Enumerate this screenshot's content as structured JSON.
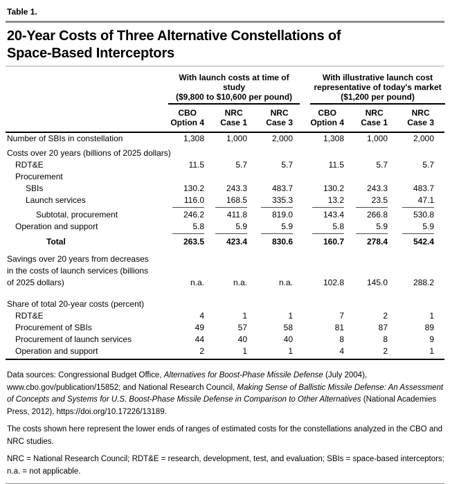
{
  "table_label": "Table 1.",
  "title_lines": [
    "20-Year Costs of Three Alternative Constellations of",
    "Space-Based Interceptors"
  ],
  "column_groups": [
    {
      "lines": [
        "With launch costs at time of study",
        "($9,800 to $10,600 per pound)"
      ]
    },
    {
      "lines": [
        "With illustrative launch cost",
        "representative of today's market",
        "($1,200 per pound)"
      ]
    }
  ],
  "columns": [
    {
      "lines": [
        "CBO",
        "Option 4"
      ]
    },
    {
      "lines": [
        "NRC",
        "Case 1"
      ]
    },
    {
      "lines": [
        "NRC",
        "Case 3"
      ]
    },
    {
      "lines": [
        "CBO",
        "Option 4"
      ]
    },
    {
      "lines": [
        "NRC",
        "Case 1"
      ]
    },
    {
      "lines": [
        "NRC",
        "Case 3"
      ]
    }
  ],
  "rows": [
    {
      "label": "Number of SBIs in constellation",
      "indent": 0,
      "values": [
        "1,308",
        "1,000",
        "2,000",
        "1,308",
        "1,000",
        "2,000"
      ],
      "gap_after": 4
    },
    {
      "label": "Costs over 20 years (billions of 2025 dollars)",
      "indent": 0,
      "values": null
    },
    {
      "label": "RDT&E",
      "indent": 1,
      "values": [
        "11.5",
        "5.7",
        "5.7",
        "11.5",
        "5.7",
        "5.7"
      ]
    },
    {
      "label": "Procurement",
      "indent": 1,
      "values": null
    },
    {
      "label": "SBIs",
      "indent": 2,
      "values": [
        "130.2",
        "243.3",
        "483.7",
        "130.2",
        "243.3",
        "483.7"
      ]
    },
    {
      "label": "Launch services",
      "indent": 2,
      "values": [
        "116.0",
        "168.5",
        "335.3",
        "13.2",
        "23.5",
        "47.1"
      ],
      "underline": true
    },
    {
      "label": "Subtotal, procurement",
      "indent": 3,
      "values": [
        "246.2",
        "411.8",
        "819.0",
        "143.4",
        "266.8",
        "530.8"
      ],
      "gap_before": 2
    },
    {
      "label": "Operation and support",
      "indent": 1,
      "values": [
        "5.8",
        "5.9",
        "5.9",
        "5.8",
        "5.9",
        "5.9"
      ],
      "underline": true
    },
    {
      "label": "Total",
      "indent": 4,
      "bold": true,
      "values": [
        "263.5",
        "423.4",
        "830.6",
        "160.7",
        "278.4",
        "542.4"
      ],
      "gap_before": 3,
      "gap_after": 8
    },
    {
      "label_lines": [
        "Savings over 20 years from decreases",
        "in the costs of launch services (billions",
        "of 2025 dollars)"
      ],
      "indent": 0,
      "align": "bottom",
      "values": [
        "n.a.",
        "n.a.",
        "n.a.",
        "102.8",
        "145.0",
        "288.2"
      ],
      "gap_after": 14
    },
    {
      "label": "Share of total 20-year costs (percent)",
      "indent": 0,
      "values": null
    },
    {
      "label": "RDT&E",
      "indent": 1,
      "values": [
        "4",
        "1",
        "1",
        "7",
        "2",
        "1"
      ]
    },
    {
      "label": "Procurement of SBIs",
      "indent": 1,
      "values": [
        "49",
        "57",
        "58",
        "81",
        "87",
        "89"
      ]
    },
    {
      "label": "Procurement of launch services",
      "indent": 1,
      "values": [
        "44",
        "40",
        "40",
        "8",
        "8",
        "9"
      ]
    },
    {
      "label": "Operation and support",
      "indent": 1,
      "values": [
        "2",
        "1",
        "1",
        "4",
        "2",
        "1"
      ]
    }
  ],
  "footnotes": {
    "data_sources_segments": [
      {
        "text": "Data sources: Congressional Budget Office, ",
        "italic": false
      },
      {
        "text": "Alternatives for Boost-Phase Missile Defense",
        "italic": true
      },
      {
        "text": " (July 2004), www.cbo.gov/publication/15852; and National Research Council, ",
        "italic": false
      },
      {
        "text": "Making Sense of Ballistic Missile Defense: An Assessment of Concepts and Systems for U.S. Boost-Phase Missile Defense in Comparison to Other Alternatives",
        "italic": true
      },
      {
        "text": " (National Academies Press, 2012), https://doi.org/10.17226/13189.",
        "italic": false
      }
    ],
    "costs_note": "The costs shown here represent the lower ends of ranges of estimated costs for the constellations analyzed in the CBO and NRC studies.",
    "abbreviations": "NRC = National Research Council; RDT&E = research, development, test, and evaluation; SBIs = space-based interceptors; n.a. = not applicable."
  },
  "colors": {
    "rule_gray": "#8f8f8f",
    "rule_black": "#000000",
    "text": "#000000",
    "background": "#ffffff"
  }
}
